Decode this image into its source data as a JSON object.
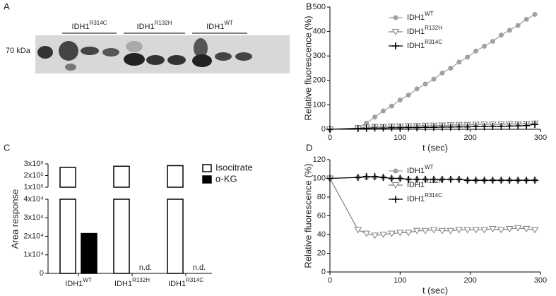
{
  "blot": {
    "panel_label": "A",
    "marker": "70 kDa",
    "groups": [
      {
        "name": "IDH1",
        "sup": "R314C"
      },
      {
        "name": "IDH1",
        "sup": "R132H"
      },
      {
        "name": "IDH1",
        "sup": "WT"
      }
    ]
  },
  "chart_data": [
    {
      "type": "line",
      "panel_label": "B",
      "x_label": "t (sec)",
      "y_label": "Relative fluorescence (%)",
      "x": [
        0,
        40,
        52,
        64,
        76,
        88,
        100,
        112,
        124,
        136,
        148,
        160,
        172,
        184,
        196,
        208,
        220,
        232,
        244,
        256,
        268,
        280,
        292
      ],
      "xlim": [
        0,
        300
      ],
      "xticks": [
        0,
        100,
        200,
        300
      ],
      "ylim": [
        0,
        500
      ],
      "yticks": [
        0,
        100,
        200,
        300,
        400,
        500
      ],
      "series": [
        {
          "name": "IDH1",
          "name_sup": "WT",
          "color": "#a0a0a0",
          "marker": "circle",
          "values": [
            0,
            5,
            25,
            50,
            75,
            95,
            120,
            140,
            165,
            185,
            205,
            230,
            250,
            275,
            295,
            320,
            340,
            360,
            385,
            405,
            425,
            450,
            470
          ]
        },
        {
          "name": "IDH1",
          "name_sup": "R132H",
          "color": "#808080",
          "marker": "triangle-down",
          "values": [
            0,
            5,
            8,
            10,
            10,
            12,
            12,
            13,
            14,
            15,
            15,
            16,
            17,
            18,
            18,
            19,
            20,
            20,
            21,
            22,
            22,
            23,
            24
          ]
        },
        {
          "name": "IDH1",
          "name_sup": "R314C",
          "color": "#000000",
          "marker": "plus",
          "values": [
            0,
            3,
            4,
            5,
            5,
            6,
            6,
            7,
            7,
            8,
            8,
            9,
            9,
            10,
            10,
            11,
            11,
            12,
            12,
            13,
            14,
            15,
            20
          ]
        }
      ]
    },
    {
      "type": "bar",
      "panel_label": "C",
      "y_label": "Area response",
      "categories": [
        "IDH1",
        "IDH1",
        "IDH1"
      ],
      "category_sups": [
        "WT",
        "R132H",
        "R314C"
      ],
      "ylim": [
        0,
        40000
      ],
      "yticks": [
        0,
        {
          "value": 10000,
          "label": "1x10⁴"
        },
        {
          "value": 20000,
          "label": "2x10⁴"
        },
        {
          "value": 30000,
          "label": "3x10⁴"
        },
        {
          "value": 40000,
          "label": "4x10⁴"
        }
      ],
      "ylim_upper": [
        100000,
        300000
      ],
      "yticks_upper": [
        {
          "value": 100000,
          "label": "1x10⁵"
        },
        {
          "value": 200000,
          "label": "2x10⁵"
        },
        {
          "value": 300000,
          "label": "3x10⁵"
        }
      ],
      "series": [
        {
          "name": "Isocitrate",
          "color": "#ffffff",
          "values": [
            270000,
            280000,
            285000
          ]
        },
        {
          "name": "α-KG",
          "color": "#000000",
          "values": [
            21500,
            null,
            null
          ],
          "value_labels": [
            null,
            "n.d.",
            "n.d."
          ]
        }
      ]
    },
    {
      "type": "line",
      "panel_label": "D",
      "x_label": "t (sec)",
      "y_label": "Relative fluorescence (%)",
      "x": [
        0,
        40,
        52,
        64,
        76,
        88,
        100,
        112,
        124,
        136,
        148,
        160,
        172,
        184,
        196,
        208,
        220,
        232,
        244,
        256,
        268,
        280,
        292
      ],
      "xlim": [
        0,
        300
      ],
      "xticks": [
        0,
        100,
        200,
        300
      ],
      "ylim": [
        0,
        120
      ],
      "yticks": [
        0,
        20,
        40,
        60,
        80,
        100,
        120
      ],
      "series": [
        {
          "name": "IDH1",
          "name_sup": "WT",
          "color": "#a0a0a0",
          "marker": "circle",
          "values": [
            100,
            101,
            101,
            101,
            101,
            100,
            100,
            99,
            99,
            99,
            99,
            99,
            99,
            99,
            98,
            98,
            98,
            98,
            98,
            98,
            98,
            98,
            98
          ]
        },
        {
          "name": "IDH1",
          "name_sup": "R132H",
          "color": "#808080",
          "marker": "triangle-down",
          "values": [
            100,
            45,
            41,
            39,
            40,
            41,
            42,
            42,
            44,
            44,
            45,
            44,
            44,
            45,
            45,
            45,
            45,
            46,
            45,
            46,
            47,
            46,
            45
          ]
        },
        {
          "name": "IDH1",
          "name_sup": "R314C",
          "color": "#000000",
          "marker": "plus",
          "values": [
            100,
            101,
            102,
            102,
            101,
            100,
            100,
            99,
            99,
            99,
            99,
            99,
            99,
            99,
            98,
            98,
            98,
            98,
            98,
            98,
            98,
            98,
            98
          ]
        }
      ]
    }
  ]
}
